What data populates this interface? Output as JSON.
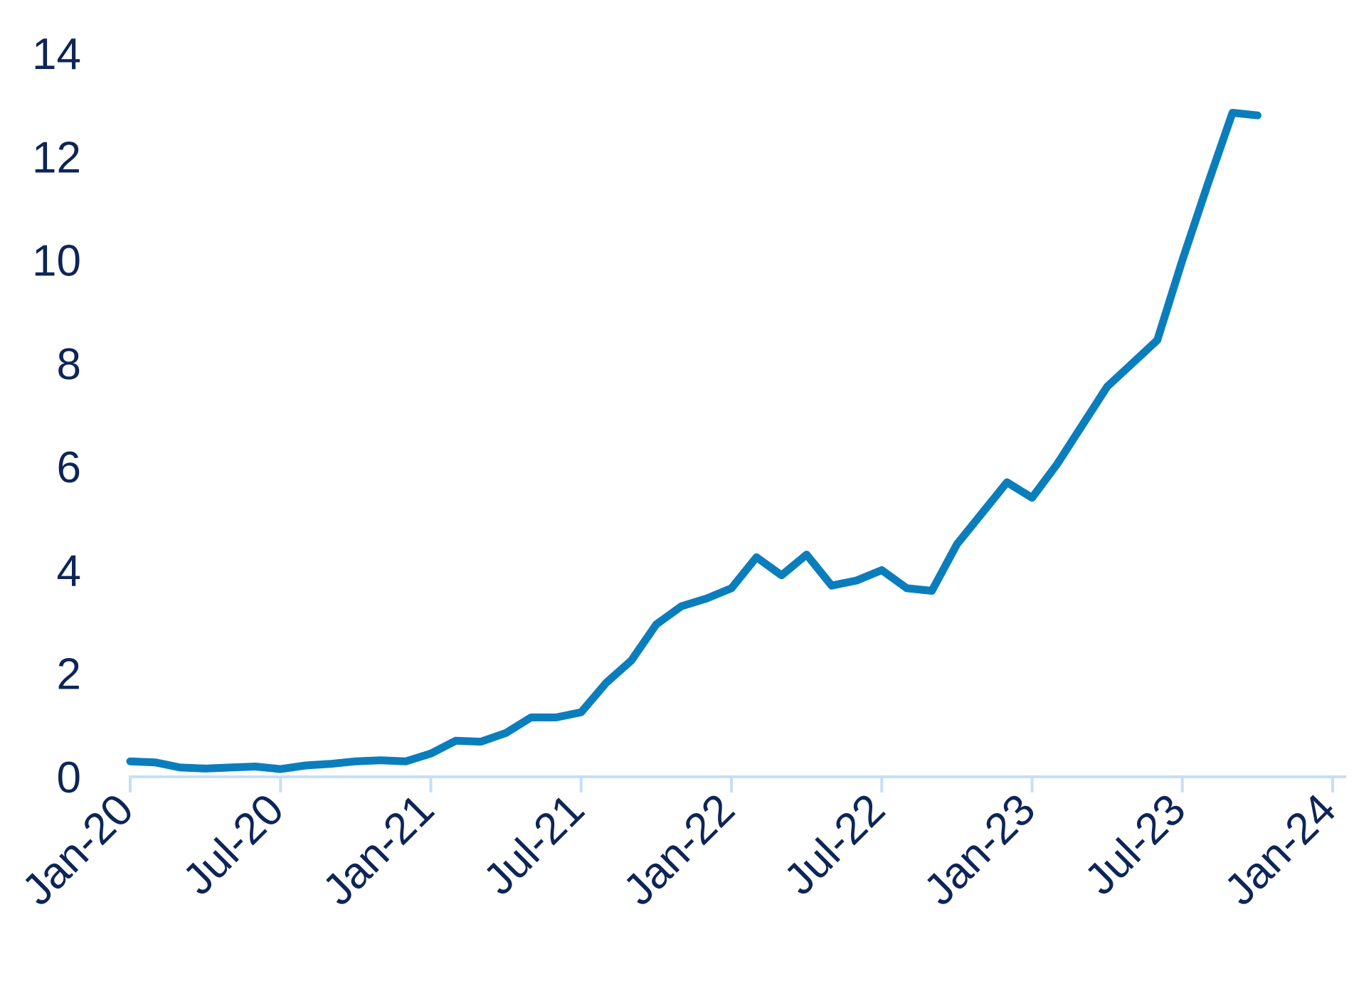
{
  "chart_data": {
    "type": "line",
    "title": "",
    "xlabel": "",
    "ylabel": "",
    "ylim": [
      0,
      14
    ],
    "y_ticks": [
      0,
      2,
      4,
      6,
      8,
      10,
      12,
      14
    ],
    "x_tick_labels": [
      "Jan-20",
      "Jul-20",
      "Jan-21",
      "Jul-21",
      "Jan-22",
      "Jul-22",
      "Jan-23",
      "Jul-23",
      "Jan-24"
    ],
    "x_range": [
      "2020-01",
      "2024-02"
    ],
    "grid": false,
    "legend": "none",
    "colors": {
      "line": "#0a7ebd",
      "axis": "#c5dff7",
      "text": "#0d2557"
    },
    "series": [
      {
        "points": [
          [
            "2020-01",
            0.3
          ],
          [
            "2020-02",
            0.28
          ],
          [
            "2020-03",
            0.18
          ],
          [
            "2020-04",
            0.16
          ],
          [
            "2020-05",
            0.18
          ],
          [
            "2020-06",
            0.2
          ],
          [
            "2020-07",
            0.15
          ],
          [
            "2020-08",
            0.22
          ],
          [
            "2020-09",
            0.25
          ],
          [
            "2020-10",
            0.3
          ],
          [
            "2020-11",
            0.32
          ],
          [
            "2020-12",
            0.3
          ],
          [
            "2021-01",
            0.45
          ],
          [
            "2021-02",
            0.7
          ],
          [
            "2021-03",
            0.68
          ],
          [
            "2021-04",
            0.85
          ],
          [
            "2021-05",
            1.15
          ],
          [
            "2021-06",
            1.15
          ],
          [
            "2021-07",
            1.25
          ],
          [
            "2021-08",
            1.82
          ],
          [
            "2021-09",
            2.25
          ],
          [
            "2021-10",
            2.95
          ],
          [
            "2021-11",
            3.3
          ],
          [
            "2021-12",
            3.45
          ],
          [
            "2022-01",
            3.65
          ],
          [
            "2022-02",
            4.25
          ],
          [
            "2022-03",
            3.9
          ],
          [
            "2022-04",
            4.3
          ],
          [
            "2022-05",
            3.7
          ],
          [
            "2022-06",
            3.8
          ],
          [
            "2022-07",
            4.0
          ],
          [
            "2022-08",
            3.65
          ],
          [
            "2022-09",
            3.6
          ],
          [
            "2022-10",
            4.5
          ],
          [
            "2022-11",
            5.1
          ],
          [
            "2022-12",
            5.7
          ],
          [
            "2023-01",
            5.4
          ],
          [
            "2023-02",
            6.05
          ],
          [
            "2023-03",
            6.8
          ],
          [
            "2023-04",
            7.55
          ],
          [
            "2023-05",
            8.0
          ],
          [
            "2023-06",
            8.45
          ],
          [
            "2023-07",
            10.0
          ],
          [
            "2023-08",
            11.45
          ],
          [
            "2023-09",
            12.85
          ],
          [
            "2023-10",
            12.8
          ]
        ]
      }
    ]
  }
}
